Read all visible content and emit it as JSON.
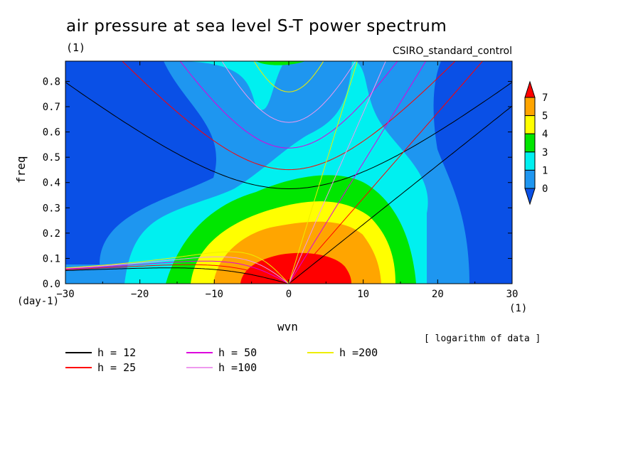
{
  "chart_data": {
    "type": "heatmap",
    "title": "air pressure at sea level S-T power spectrum",
    "subtitle_left": "(1)",
    "subtitle_right": "CSIRO_standard_control",
    "xlabel": "wvn",
    "ylabel": "freq",
    "x_unit": "(1)",
    "y_unit": "(day-1)",
    "note": "[ logarithm of data ]",
    "xlim": [
      -30,
      30
    ],
    "ylim": [
      0,
      0.88
    ],
    "x_ticks": [
      -30,
      -20,
      -10,
      0,
      10,
      20,
      30
    ],
    "y_ticks": [
      0.0,
      0.1,
      0.2,
      0.3,
      0.4,
      0.5,
      0.6,
      0.7,
      0.8
    ],
    "colorbar": {
      "labels": [
        "0",
        "1",
        "3",
        "4",
        "5",
        "7"
      ],
      "colors": [
        "#0a50e6",
        "#1e96f0",
        "#00f0f0",
        "#00e600",
        "#ffff00",
        "#ffa500",
        "#ff0000"
      ]
    },
    "dispersion_curves": [
      {
        "name": "h = 12",
        "color": "#000000",
        "h": 12
      },
      {
        "name": "h = 25",
        "color": "#ff0000",
        "h": 25
      },
      {
        "name": "h = 50",
        "color": "#dd00dd",
        "h": 50
      },
      {
        "name": "h =100",
        "color": "#ee99ee",
        "h": 100
      },
      {
        "name": "h =200",
        "color": "#eeee00",
        "h": 200
      }
    ]
  }
}
